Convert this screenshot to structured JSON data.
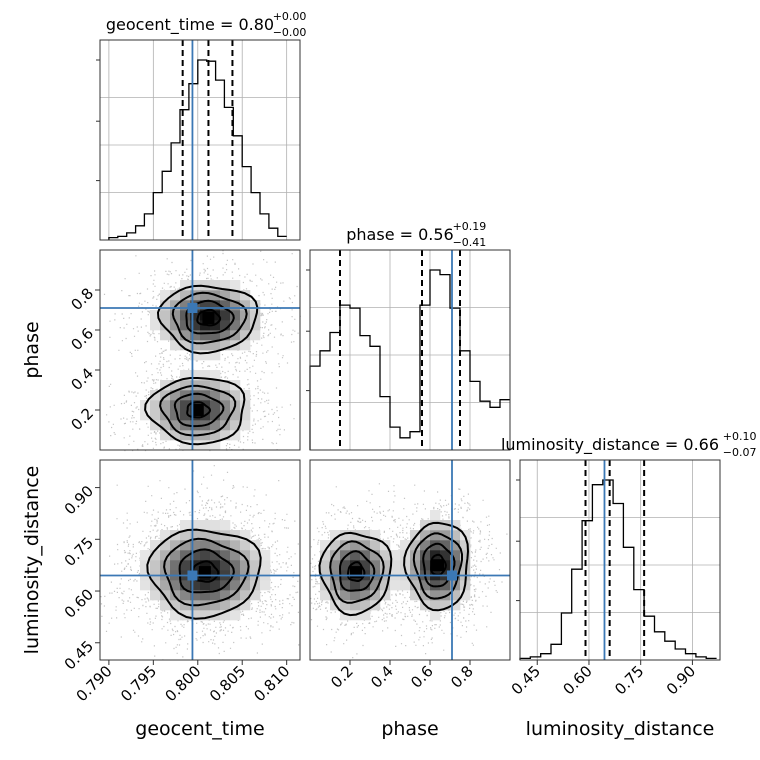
{
  "chart_data": {
    "type": "corner",
    "parameters": [
      "geocent_time",
      "phase",
      "luminosity_distance"
    ],
    "axis_labels": [
      "geocent_time",
      "phase",
      "luminosity_distance"
    ],
    "ranges": {
      "geocent_time": [
        0.789,
        0.8115
      ],
      "phase": [
        0.0,
        1.0
      ],
      "luminosity_distance": [
        0.4,
        0.98
      ]
    },
    "ticks": {
      "geocent_time": {
        "values": [
          0.79,
          0.795,
          0.8,
          0.805,
          0.81
        ],
        "labels": [
          "0.790",
          "0.795",
          "0.800",
          "0.805",
          "0.810"
        ]
      },
      "phase": {
        "values": [
          0.2,
          0.4,
          0.6,
          0.8
        ],
        "labels": [
          "0.2",
          "0.4",
          "0.6",
          "0.8"
        ]
      },
      "luminosity_distance": {
        "values": [
          0.45,
          0.6,
          0.75,
          0.9
        ],
        "labels": [
          "0.45",
          "0.60",
          "0.75",
          "0.90"
        ]
      }
    },
    "titles": [
      {
        "param": "geocent_time",
        "text": "geocent_time = 0.80",
        "plus": "+0.00",
        "minus": "−0.00"
      },
      {
        "param": "phase",
        "text": "phase = 0.56",
        "plus": "+0.19",
        "minus": "−0.41"
      },
      {
        "param": "luminosity_distance",
        "text": "luminosity_distance = 0.66",
        "plus": "+0.10",
        "minus": "−0.07"
      }
    ],
    "truths": {
      "geocent_time": 0.7994,
      "phase": 0.71,
      "luminosity_distance": 0.645
    },
    "quantiles": {
      "geocent_time": [
        0.7983,
        0.8012,
        0.8039
      ],
      "phase": [
        0.15,
        0.56,
        0.75
      ],
      "luminosity_distance": [
        0.59,
        0.66,
        0.76
      ]
    },
    "histograms": {
      "geocent_time": {
        "edges": [
          0.79,
          0.791,
          0.792,
          0.793,
          0.794,
          0.795,
          0.796,
          0.797,
          0.798,
          0.799,
          0.8,
          0.801,
          0.802,
          0.803,
          0.804,
          0.805,
          0.806,
          0.807,
          0.808,
          0.809,
          0.81
        ],
        "counts": [
          2,
          3,
          6,
          12,
          22,
          40,
          58,
          82,
          110,
          132,
          152,
          151,
          135,
          112,
          88,
          62,
          40,
          22,
          10,
          3
        ]
      },
      "phase": {
        "edges": [
          0.0,
          0.05,
          0.1,
          0.15,
          0.2,
          0.25,
          0.3,
          0.35,
          0.4,
          0.45,
          0.5,
          0.55,
          0.6,
          0.65,
          0.7,
          0.75,
          0.8,
          0.85,
          0.9,
          0.95,
          1.0
        ],
        "counts": [
          55,
          65,
          77,
          95,
          93,
          75,
          68,
          35,
          15,
          8,
          12,
          95,
          118,
          115,
          93,
          65,
          45,
          32,
          28,
          33
        ]
      },
      "luminosity_distance": {
        "edges": [
          0.4,
          0.43,
          0.46,
          0.49,
          0.52,
          0.55,
          0.58,
          0.61,
          0.64,
          0.67,
          0.7,
          0.73,
          0.76,
          0.79,
          0.82,
          0.85,
          0.88,
          0.91,
          0.94,
          0.97
        ],
        "counts": [
          1,
          2,
          4,
          10,
          30,
          58,
          89,
          112,
          115,
          100,
          72,
          45,
          28,
          18,
          12,
          7,
          4,
          2,
          1
        ]
      }
    },
    "density_modes": {
      "phase_vs_geocent_time": [
        {
          "x": 0.8012,
          "y": 0.66,
          "sx": 0.0028,
          "sy": 0.085,
          "w": 1.0
        },
        {
          "x": 0.8,
          "y": 0.2,
          "sx": 0.0028,
          "sy": 0.085,
          "w": 0.85
        }
      ],
      "luminosity_distance_vs_geocent_time": [
        {
          "x": 0.8008,
          "y": 0.655,
          "sx": 0.0032,
          "sy": 0.065,
          "w": 1.0
        }
      ],
      "luminosity_distance_vs_phase": [
        {
          "x": 0.23,
          "y": 0.655,
          "sx": 0.09,
          "sy": 0.06,
          "w": 0.9
        },
        {
          "x": 0.64,
          "y": 0.675,
          "sx": 0.08,
          "sy": 0.065,
          "w": 1.0
        }
      ]
    },
    "grid": true
  }
}
